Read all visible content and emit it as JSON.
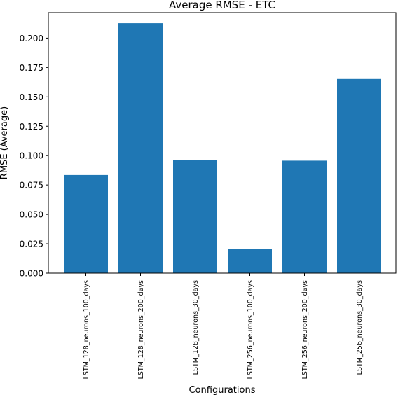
{
  "chart_data": {
    "type": "bar",
    "title": "Average RMSE - ETC",
    "xlabel": "Configurations",
    "ylabel": "RMSE (Average)",
    "categories": [
      "LSTM_128_neurons_100_days",
      "LSTM_128_neurons_200_days",
      "LSTM_128_neurons_30_days",
      "LSTM_256_neurons_100_days",
      "LSTM_256_neurons_200_days",
      "LSTM_256_neurons_30_days"
    ],
    "values": [
      0.0835,
      0.2127,
      0.0962,
      0.0205,
      0.0957,
      0.1652
    ],
    "ylim": [
      0,
      0.2217
    ],
    "yticks": [
      "0.000",
      "0.025",
      "0.050",
      "0.075",
      "0.100",
      "0.125",
      "0.150",
      "0.175",
      "0.200"
    ],
    "grid": false,
    "bar_color": "#1f77b4",
    "xtick_rotation": "vertical"
  }
}
